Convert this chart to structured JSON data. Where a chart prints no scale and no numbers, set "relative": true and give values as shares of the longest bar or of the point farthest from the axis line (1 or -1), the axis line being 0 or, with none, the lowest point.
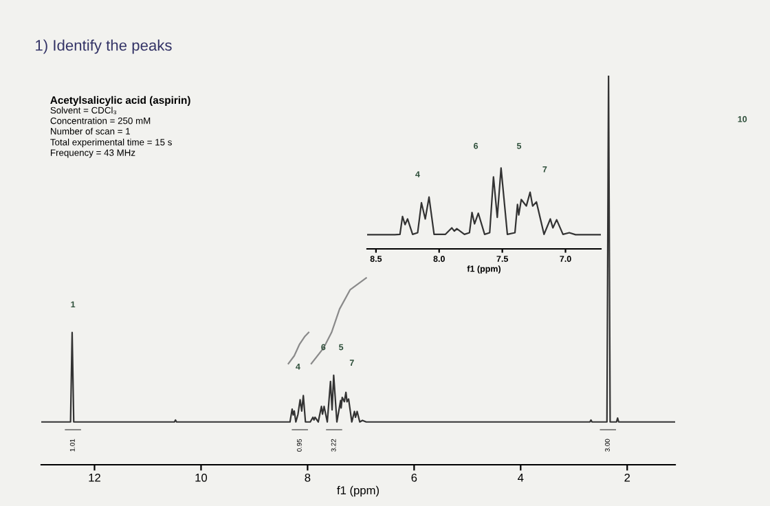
{
  "chart_data": [
    {
      "type": "line",
      "title": "1) Identify the peaks",
      "subtitle": "Acetylsalicylic acid (aspirin)",
      "xlabel": "f1 (ppm)",
      "relative": true,
      "tick_labels": "x",
      "xlim": [
        13.0,
        1.1
      ],
      "xticks": [
        12,
        10,
        8,
        6,
        4,
        2
      ],
      "annotations": [
        "Solvent = CDCl₃",
        "Concentration = 250 mM",
        "Number of scan = 1",
        "Total experimental time = 15 s",
        "Frequency = 43 MHz",
        "1",
        "4",
        "6",
        "5",
        "7",
        "10",
        "1.01",
        "0.95",
        "3.22",
        "3.00"
      ],
      "series": [
        {
          "color": "#333333",
          "x": [
            13.0,
            12.45,
            12.42,
            12.39,
            10.5,
            10.48,
            10.46,
            8.4,
            8.33,
            8.29,
            8.27,
            8.25,
            8.22,
            8.18,
            8.14,
            8.11,
            8.08,
            8.04,
            7.95,
            7.9,
            7.88,
            7.86,
            7.8,
            7.74,
            7.72,
            7.69,
            7.63,
            7.57,
            7.54,
            7.51,
            7.45,
            7.38,
            7.37,
            7.35,
            7.31,
            7.28,
            7.26,
            7.23,
            7.17,
            7.12,
            7.1,
            7.07,
            7.02,
            6.97,
            6.9,
            2.7,
            2.68,
            2.66,
            2.38,
            2.35,
            2.32,
            2.2,
            2.18,
            2.16,
            1.1
          ],
          "values": [
            0.11,
            0.11,
            0.34,
            0.11,
            0.11,
            0.115,
            0.11,
            0.11,
            0.11,
            0.143,
            0.128,
            0.138,
            0.11,
            0.13,
            0.167,
            0.138,
            0.178,
            0.11,
            0.11,
            0.122,
            0.115,
            0.122,
            0.11,
            0.15,
            0.13,
            0.15,
            0.11,
            0.214,
            0.141,
            0.23,
            0.11,
            0.165,
            0.146,
            0.173,
            0.162,
            0.186,
            0.162,
            0.169,
            0.11,
            0.137,
            0.122,
            0.137,
            0.11,
            0.114,
            0.11,
            0.11,
            0.115,
            0.11,
            0.11,
            1.0,
            0.11,
            0.11,
            0.12,
            0.11,
            0.11
          ]
        },
        {
          "color": "#8a8a8a",
          "x": [
            8.36,
            8.25,
            8.15,
            8.05,
            7.98
          ],
          "values": [
            0.26,
            0.28,
            0.31,
            0.33,
            0.34
          ]
        },
        {
          "color": "#8a8a8a",
          "x": [
            7.93,
            7.7,
            7.55,
            7.4,
            7.2,
            6.9
          ],
          "values": [
            0.26,
            0.3,
            0.34,
            0.4,
            0.45,
            0.48
          ]
        }
      ]
    },
    {
      "type": "line",
      "xlabel": "f1 (ppm)",
      "relative": true,
      "tick_labels": "x",
      "xlim": [
        8.57,
        6.72
      ],
      "xticks": [
        8.5,
        {
          "value": 8.0,
          "label": "8.0"
        },
        7.5,
        {
          "value": 7.0,
          "label": "7.0"
        }
      ],
      "annotations": [
        "4",
        "6",
        "5",
        "7"
      ],
      "series": [
        {
          "color": "#333333",
          "x": [
            8.57,
            8.35,
            8.31,
            8.29,
            8.27,
            8.25,
            8.21,
            8.17,
            8.14,
            8.11,
            8.08,
            8.04,
            7.95,
            7.9,
            7.88,
            7.86,
            7.8,
            7.76,
            7.74,
            7.72,
            7.69,
            7.64,
            7.6,
            7.57,
            7.54,
            7.51,
            7.46,
            7.4,
            7.38,
            7.37,
            7.35,
            7.31,
            7.28,
            7.26,
            7.23,
            7.17,
            7.12,
            7.1,
            7.07,
            7.02,
            6.97,
            6.92,
            6.72
          ],
          "values": [
            0.175,
            0.175,
            0.18,
            0.4,
            0.3,
            0.37,
            0.18,
            0.2,
            0.57,
            0.37,
            0.64,
            0.18,
            0.18,
            0.26,
            0.22,
            0.25,
            0.18,
            0.2,
            0.45,
            0.31,
            0.44,
            0.18,
            0.2,
            0.89,
            0.39,
            1.0,
            0.18,
            0.2,
            0.55,
            0.42,
            0.61,
            0.53,
            0.7,
            0.53,
            0.58,
            0.18,
            0.37,
            0.26,
            0.36,
            0.18,
            0.2,
            0.175,
            0.175
          ]
        }
      ]
    }
  ]
}
